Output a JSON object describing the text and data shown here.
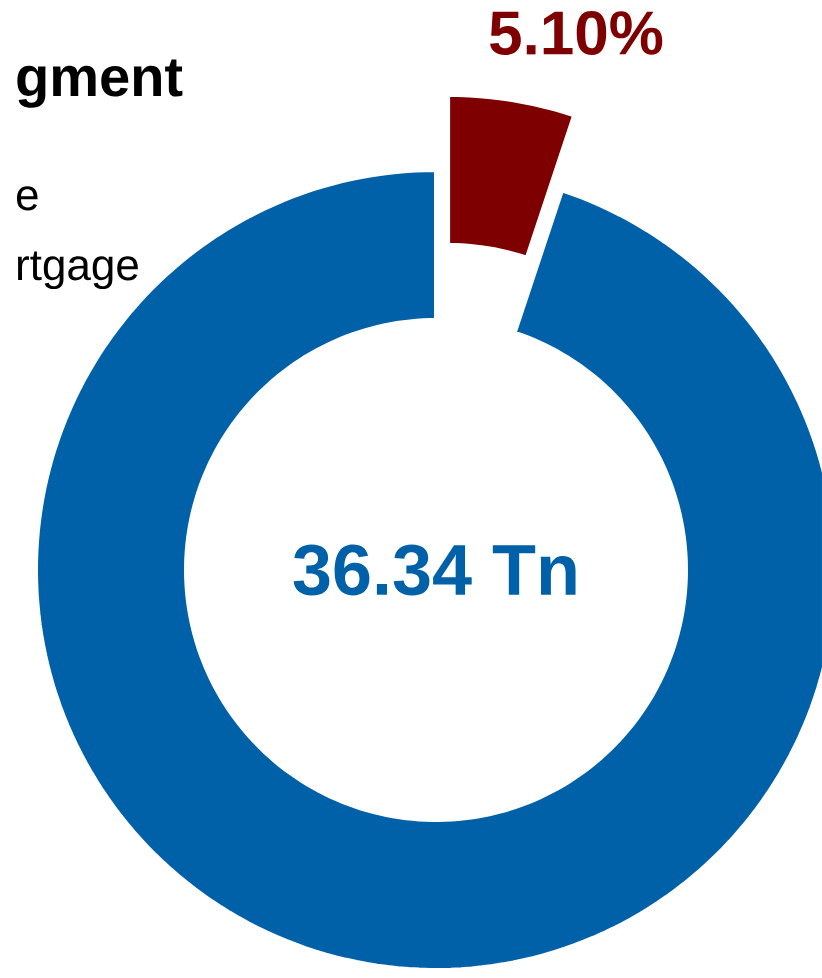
{
  "chart_data": {
    "type": "donut",
    "title": "gment",
    "categories": [
      null,
      null
    ],
    "values": [
      5.1,
      94.9
    ],
    "colors": [
      "#7f0000",
      "#0061a8"
    ],
    "value_labels": [
      "5.10%",
      null
    ],
    "annotations": [
      "e",
      "rtgage",
      "36.34 Tn"
    ]
  }
}
